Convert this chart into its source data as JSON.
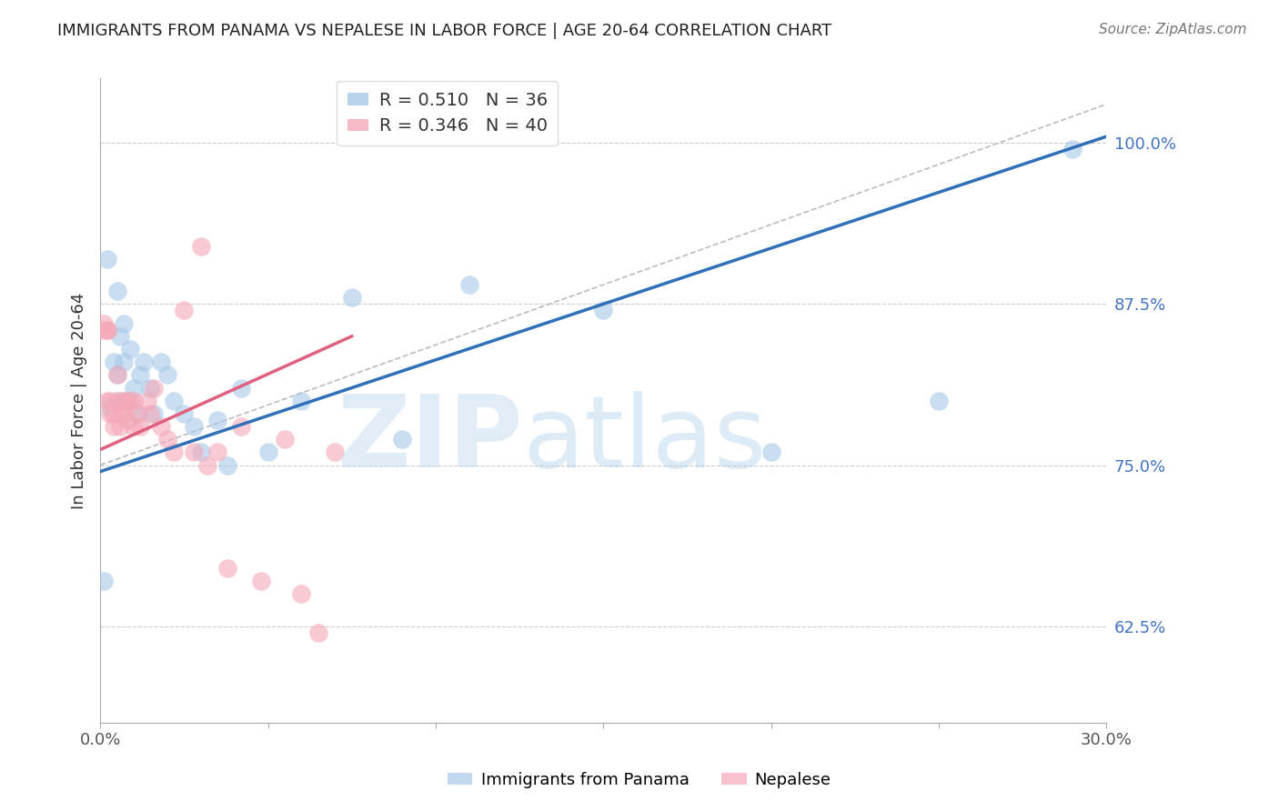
{
  "title": "IMMIGRANTS FROM PANAMA VS NEPALESE IN LABOR FORCE | AGE 20-64 CORRELATION CHART",
  "source": "Source: ZipAtlas.com",
  "ylabel": "In Labor Force | Age 20-64",
  "right_ytick_labels": [
    "100.0%",
    "87.5%",
    "75.0%",
    "62.5%"
  ],
  "right_ytick_values": [
    1.0,
    0.875,
    0.75,
    0.625
  ],
  "xlim": [
    0.0,
    0.3
  ],
  "ylim": [
    0.55,
    1.05
  ],
  "blue_color": "#a8c8e8",
  "pink_color": "#f4a8b8",
  "blue_line_color": "#3070b8",
  "pink_line_color": "#e06080",
  "legend_blue_r": "R = 0.510",
  "legend_blue_n": "N = 36",
  "legend_pink_r": "R = 0.346",
  "legend_pink_n": "N = 40",
  "blue_x": [
    0.001,
    0.002,
    0.003,
    0.004,
    0.005,
    0.005,
    0.006,
    0.006,
    0.007,
    0.007,
    0.008,
    0.009,
    0.01,
    0.011,
    0.012,
    0.013,
    0.015,
    0.016,
    0.018,
    0.02,
    0.022,
    0.025,
    0.028,
    0.03,
    0.035,
    0.038,
    0.042,
    0.05,
    0.06,
    0.075,
    0.09,
    0.11,
    0.15,
    0.2,
    0.25,
    0.29
  ],
  "blue_y": [
    0.66,
    0.91,
    0.795,
    0.83,
    0.885,
    0.82,
    0.85,
    0.8,
    0.86,
    0.83,
    0.8,
    0.84,
    0.81,
    0.79,
    0.82,
    0.83,
    0.81,
    0.79,
    0.83,
    0.82,
    0.8,
    0.79,
    0.78,
    0.76,
    0.785,
    0.75,
    0.81,
    0.76,
    0.8,
    0.88,
    0.77,
    0.89,
    0.87,
    0.76,
    0.8,
    0.995
  ],
  "pink_x": [
    0.001,
    0.001,
    0.002,
    0.002,
    0.002,
    0.003,
    0.003,
    0.004,
    0.004,
    0.005,
    0.005,
    0.006,
    0.006,
    0.007,
    0.007,
    0.008,
    0.008,
    0.009,
    0.01,
    0.01,
    0.011,
    0.012,
    0.014,
    0.015,
    0.016,
    0.018,
    0.02,
    0.022,
    0.025,
    0.028,
    0.03,
    0.032,
    0.035,
    0.038,
    0.042,
    0.048,
    0.055,
    0.06,
    0.065,
    0.07
  ],
  "pink_y": [
    0.855,
    0.86,
    0.855,
    0.855,
    0.8,
    0.8,
    0.79,
    0.78,
    0.79,
    0.8,
    0.82,
    0.78,
    0.79,
    0.8,
    0.79,
    0.8,
    0.785,
    0.8,
    0.78,
    0.8,
    0.79,
    0.78,
    0.8,
    0.79,
    0.81,
    0.78,
    0.77,
    0.76,
    0.87,
    0.76,
    0.92,
    0.75,
    0.76,
    0.67,
    0.78,
    0.66,
    0.77,
    0.65,
    0.62,
    0.76
  ],
  "blue_line_x0": 0.0,
  "blue_line_y0": 0.745,
  "blue_line_x1": 0.3,
  "blue_line_y1": 1.005,
  "pink_line_x0": 0.0,
  "pink_line_y0": 0.762,
  "pink_line_x1": 0.075,
  "pink_line_y1": 0.85,
  "gray_line_x0": 0.0,
  "gray_line_y0": 0.75,
  "gray_line_x1": 0.3,
  "gray_line_y1": 1.03
}
